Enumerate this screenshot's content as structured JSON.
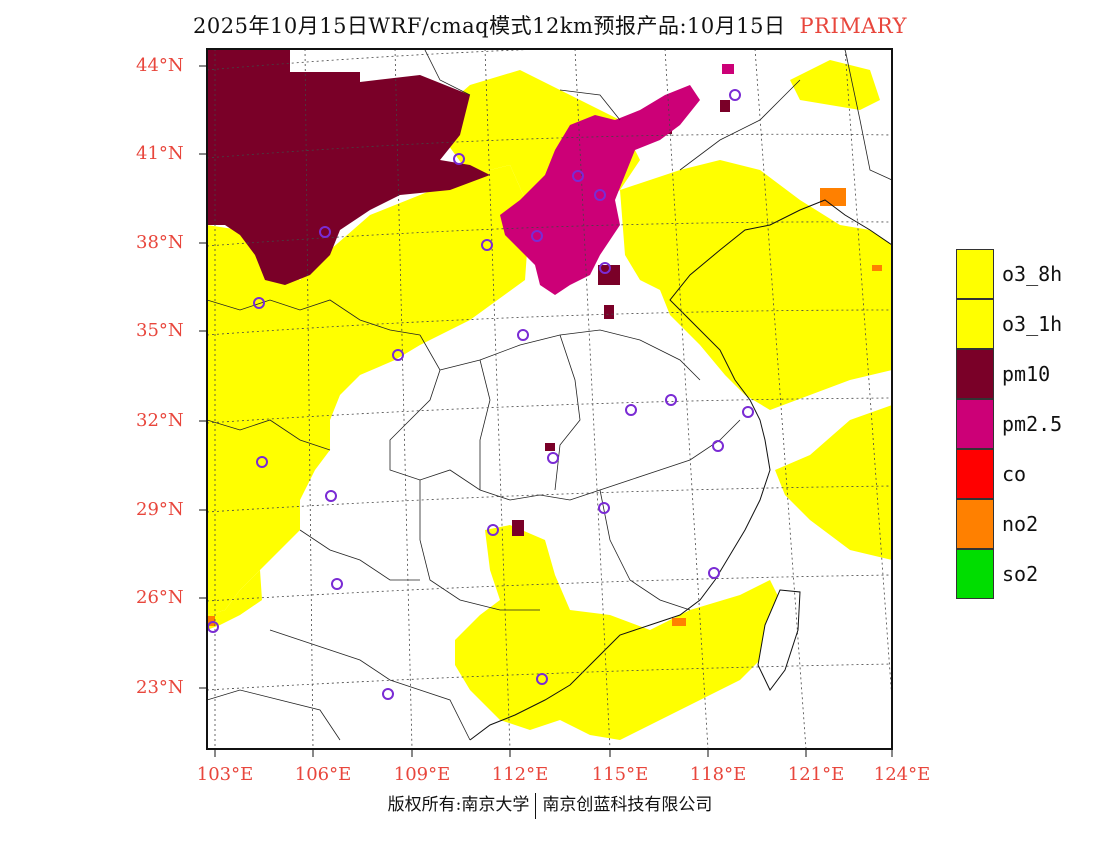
{
  "header": {
    "title": "2025年10月15日WRF/cmaq模式12km预报产品:10月15日",
    "tag": "PRIMARY"
  },
  "axes": {
    "lat_labels": [
      "44°N",
      "41°N",
      "38°N",
      "35°N",
      "32°N",
      "29°N",
      "26°N",
      "23°N"
    ],
    "lon_labels": [
      "103°E",
      "106°E",
      "109°E",
      "112°E",
      "115°E",
      "118°E",
      "121°E",
      "124°E"
    ]
  },
  "legend": {
    "items": [
      {
        "label": "o3_8h",
        "color": "#ffff00"
      },
      {
        "label": "o3_1h",
        "color": "#ffff00"
      },
      {
        "label": "pm10",
        "color": "#7a0028"
      },
      {
        "label": "pm2.5",
        "color": "#cc0077"
      },
      {
        "label": "co",
        "color": "#ff0000"
      },
      {
        "label": "no2",
        "color": "#ff8000"
      },
      {
        "label": "so2",
        "color": "#00dd00"
      }
    ]
  },
  "footer": {
    "left": "版权所有:南京大学",
    "right": "南京创蓝科技有限公司"
  }
}
